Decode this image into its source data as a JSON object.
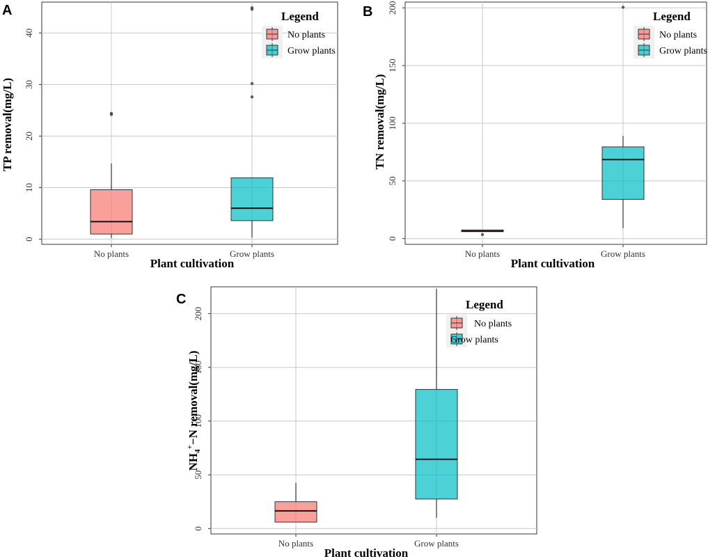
{
  "chart_data": [
    {
      "type": "box",
      "panel": "A",
      "xlabel": "Plant cultivation",
      "ylabel": "TP removal(mg/L)",
      "ylim": [
        -1,
        46
      ],
      "yticks": [
        0,
        10,
        20,
        30,
        40
      ],
      "categories": [
        "No plants",
        "Grow plants"
      ],
      "boxes": [
        {
          "category": "No plants",
          "min": 0.2,
          "q1": 1.0,
          "median": 3.4,
          "q3": 9.6,
          "max": 14.7,
          "outliers": [
            24.2,
            24.4
          ],
          "color": "#F8766D"
        },
        {
          "category": "Grow plants",
          "min": 0.3,
          "q1": 3.6,
          "median": 6.0,
          "q3": 11.9,
          "max": 12.0,
          "outliers": [
            27.6,
            30.2,
            44.6,
            44.9
          ],
          "color": "#00BFC4"
        }
      ],
      "legend": {
        "title": "Legend",
        "entries": [
          "No plants",
          "Grow plants"
        ],
        "position": "top-right"
      }
    },
    {
      "type": "box",
      "panel": "B",
      "xlabel": "Plant cultivation",
      "ylabel": "TN removal(mg/L)",
      "ylim": [
        -5,
        205
      ],
      "yticks": [
        0,
        50,
        100,
        150,
        200
      ],
      "categories": [
        "No plants",
        "Grow plants"
      ],
      "boxes": [
        {
          "category": "No plants",
          "min": 6.0,
          "q1": 6.0,
          "median": 6.5,
          "q3": 7.5,
          "max": 7.5,
          "outliers": [
            3.5
          ],
          "color": "#F8766D"
        },
        {
          "category": "Grow plants",
          "min": 9.0,
          "q1": 34.0,
          "median": 68.5,
          "q3": 79.5,
          "max": 89.0,
          "outliers": [
            200.5
          ],
          "color": "#00BFC4"
        }
      ],
      "legend": {
        "title": "Legend",
        "entries": [
          "No plants",
          "Grow plants"
        ],
        "position": "top-right"
      }
    },
    {
      "type": "box",
      "panel": "C",
      "xlabel": "Plant cultivation",
      "ylabel": "NH4+−N removal(mg/L)",
      "ylabel_parts": {
        "base": "NH",
        "sub": "4",
        "sup": "+",
        "rest": "−N removal(mg/L)"
      },
      "ylim": [
        -5,
        225
      ],
      "yticks": [
        0,
        50,
        100,
        150,
        200
      ],
      "categories": [
        "No plants",
        "Grow plants"
      ],
      "boxes": [
        {
          "category": "No plants",
          "min": 6.0,
          "q1": 6.0,
          "median": 16.5,
          "q3": 25.0,
          "max": 42.5,
          "outliers": [],
          "color": "#F8766D"
        },
        {
          "category": "Grow plants",
          "min": 10.0,
          "q1": 27.5,
          "median": 64.5,
          "q3": 129.5,
          "max": 223.0,
          "outliers": [],
          "color": "#00BFC4"
        }
      ],
      "legend": {
        "title": "Legend",
        "entries": [
          "No plants",
          "Grow plants"
        ],
        "position": "top-right"
      }
    }
  ]
}
